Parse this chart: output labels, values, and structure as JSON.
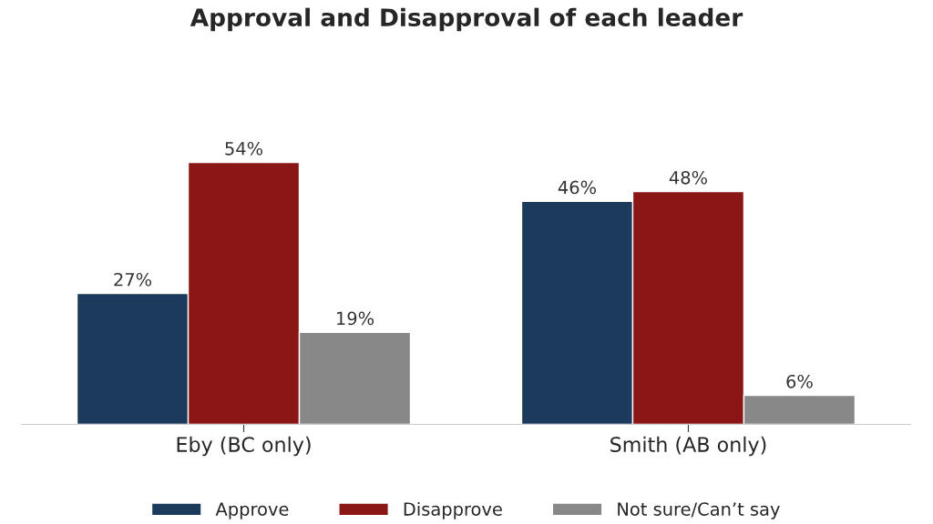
{
  "chart_data": {
    "type": "bar",
    "title": "Approval and Disapproval of each leader",
    "categories": [
      "Eby (BC only)",
      "Smith (AB only)"
    ],
    "series": [
      {
        "name": "Approve",
        "color": "#1b3a5c",
        "values": [
          27,
          46
        ],
        "value_labels": [
          "27%",
          "46%"
        ]
      },
      {
        "name": "Disapprove",
        "color": "#8b1616",
        "values": [
          54,
          48
        ],
        "value_labels": [
          "54%",
          "48%"
        ]
      },
      {
        "name": "Not sure/Can’t say",
        "color": "#888888",
        "values": [
          19,
          6
        ],
        "value_labels": [
          "19%",
          "6%"
        ]
      }
    ],
    "legend": "bottom",
    "grid": false,
    "tick_labels": "x"
  }
}
